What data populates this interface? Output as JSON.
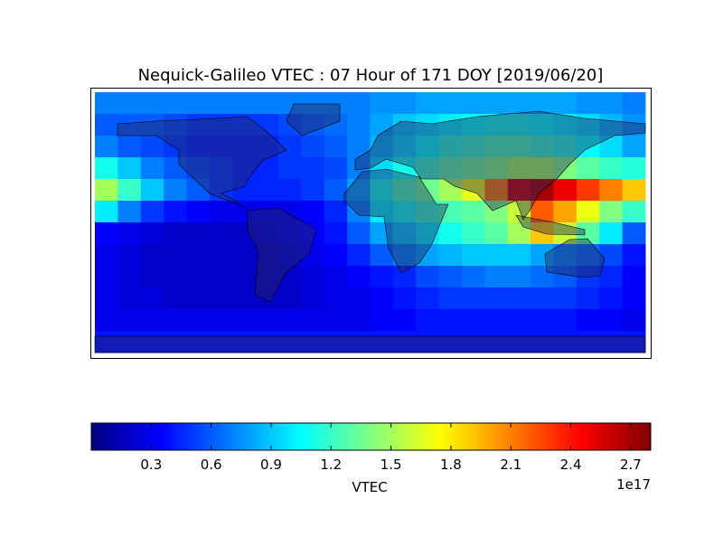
{
  "title": "Nequick-Galileo VTEC : 07 Hour of 171 DOY [2019/06/20]",
  "map": {
    "values": [
      [
        0.7,
        0.7,
        0.7,
        0.7,
        0.7,
        0.7,
        0.7,
        0.7,
        0.7,
        0.7,
        0.7,
        0.7,
        0.75,
        0.75,
        0.8,
        0.8,
        0.8,
        0.8,
        0.8,
        0.8,
        0.8,
        0.75,
        0.75,
        0.7
      ],
      [
        0.6,
        0.6,
        0.6,
        0.55,
        0.5,
        0.5,
        0.5,
        0.5,
        0.55,
        0.6,
        0.65,
        0.7,
        0.8,
        0.9,
        0.95,
        1.0,
        1.05,
        1.1,
        1.1,
        1.05,
        1.0,
        0.95,
        0.85,
        0.75
      ],
      [
        0.7,
        0.6,
        0.55,
        0.5,
        0.45,
        0.45,
        0.45,
        0.45,
        0.5,
        0.55,
        0.6,
        0.7,
        0.85,
        0.95,
        1.05,
        1.15,
        1.2,
        1.25,
        1.25,
        1.2,
        1.15,
        1.05,
        0.95,
        0.8
      ],
      [
        1.1,
        0.9,
        0.7,
        0.6,
        0.55,
        0.5,
        0.45,
        0.45,
        0.5,
        0.5,
        0.55,
        0.7,
        0.95,
        1.1,
        1.2,
        1.3,
        1.35,
        1.4,
        1.5,
        1.5,
        1.4,
        1.3,
        1.2,
        1.15
      ],
      [
        1.5,
        1.2,
        0.9,
        0.7,
        0.6,
        0.5,
        0.45,
        0.45,
        0.45,
        0.5,
        0.6,
        0.8,
        1.1,
        1.25,
        1.35,
        1.5,
        1.7,
        2.1,
        2.6,
        2.7,
        2.5,
        2.3,
        2.1,
        1.9
      ],
      [
        1.0,
        0.7,
        0.5,
        0.4,
        0.35,
        0.3,
        0.3,
        0.3,
        0.3,
        0.35,
        0.45,
        0.7,
        1.0,
        1.1,
        1.2,
        1.25,
        1.3,
        1.4,
        1.6,
        2.2,
        2.0,
        1.7,
        1.4,
        1.2
      ],
      [
        0.35,
        0.3,
        0.25,
        0.2,
        0.2,
        0.2,
        0.2,
        0.25,
        0.3,
        0.35,
        0.4,
        0.6,
        0.8,
        0.9,
        1.0,
        1.1,
        1.2,
        1.3,
        1.5,
        1.9,
        1.6,
        1.3,
        1.0,
        0.6
      ],
      [
        0.3,
        0.25,
        0.2,
        0.2,
        0.2,
        0.2,
        0.2,
        0.2,
        0.25,
        0.3,
        0.35,
        0.45,
        0.6,
        0.7,
        0.8,
        0.85,
        0.9,
        0.9,
        0.9,
        0.8,
        0.7,
        0.65,
        0.55,
        0.4
      ],
      [
        0.3,
        0.25,
        0.2,
        0.2,
        0.2,
        0.2,
        0.2,
        0.2,
        0.2,
        0.25,
        0.3,
        0.35,
        0.4,
        0.45,
        0.55,
        0.6,
        0.65,
        0.7,
        0.7,
        0.65,
        0.6,
        0.5,
        0.45,
        0.35
      ],
      [
        0.3,
        0.25,
        0.25,
        0.2,
        0.2,
        0.2,
        0.2,
        0.2,
        0.2,
        0.25,
        0.3,
        0.3,
        0.35,
        0.4,
        0.45,
        0.5,
        0.5,
        0.5,
        0.5,
        0.5,
        0.5,
        0.45,
        0.4,
        0.35
      ],
      [
        0.3,
        0.3,
        0.3,
        0.3,
        0.3,
        0.3,
        0.3,
        0.3,
        0.3,
        0.3,
        0.3,
        0.3,
        0.35,
        0.35,
        0.4,
        0.4,
        0.4,
        0.4,
        0.4,
        0.4,
        0.4,
        0.35,
        0.35,
        0.3
      ],
      [
        0.4,
        0.4,
        0.4,
        0.4,
        0.4,
        0.4,
        0.4,
        0.4,
        0.4,
        0.4,
        0.4,
        0.4,
        0.4,
        0.4,
        0.4,
        0.4,
        0.4,
        0.4,
        0.4,
        0.4,
        0.4,
        0.4,
        0.4,
        0.4
      ]
    ]
  },
  "colorbar": {
    "lim": [
      0,
      2.8
    ],
    "ticks": [
      0.3,
      0.6,
      0.9,
      1.2,
      1.5,
      1.8,
      2.1,
      2.4,
      2.7
    ],
    "label": "VTEC",
    "offset": "1e17"
  }
}
